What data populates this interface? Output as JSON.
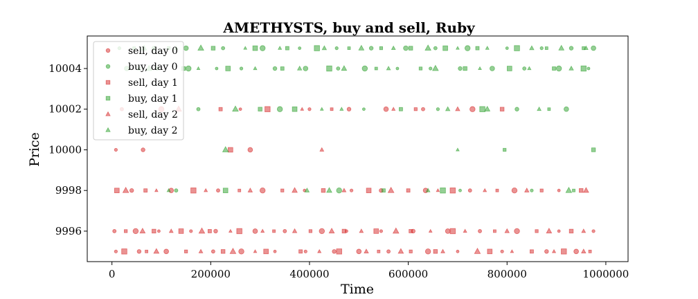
{
  "chart_data": {
    "type": "scatter",
    "title": "AMETHYSTS, buy and sell, Ruby",
    "xlabel": "Time",
    "ylabel": "Price",
    "xlim": [
      -50000,
      1045000
    ],
    "ylim": [
      9994.5,
      10005.6
    ],
    "xticks": [
      0,
      200000,
      400000,
      600000,
      800000,
      1000000
    ],
    "xtick_labels": [
      "0",
      "200000",
      "400000",
      "600000",
      "800000",
      "1000000"
    ],
    "yticks": [
      9996,
      9998,
      10000,
      10002,
      10004
    ],
    "ytick_labels": [
      "9996",
      "9998",
      "10000",
      "10002",
      "10004"
    ],
    "grid": false,
    "legend_position": "top-left",
    "colors": {
      "sell": "#d62728",
      "buy": "#2ca02c"
    },
    "marker_alpha": 0.5,
    "series": [
      {
        "name": "sell, day 0",
        "side": "sell",
        "marker": "circle",
        "points": [
          [
            8000,
            9995
          ],
          [
            55000,
            9995
          ],
          [
            110000,
            9995
          ],
          [
            205000,
            9995
          ],
          [
            262000,
            9995
          ],
          [
            330000,
            9995
          ],
          [
            392000,
            9995
          ],
          [
            450000,
            9995
          ],
          [
            500000,
            9995
          ],
          [
            560000,
            9995
          ],
          [
            640000,
            9995
          ],
          [
            700000,
            9995
          ],
          [
            790000,
            9995
          ],
          [
            880000,
            9995
          ],
          [
            940000,
            9995
          ],
          [
            5000,
            9996
          ],
          [
            48000,
            9996
          ],
          [
            95000,
            9996
          ],
          [
            160000,
            9996
          ],
          [
            210000,
            9996
          ],
          [
            290000,
            9996
          ],
          [
            350000,
            9996
          ],
          [
            425000,
            9996
          ],
          [
            475000,
            9996
          ],
          [
            545000,
            9996
          ],
          [
            610000,
            9996
          ],
          [
            680000,
            9996
          ],
          [
            745000,
            9996
          ],
          [
            820000,
            9996
          ],
          [
            905000,
            9996
          ],
          [
            975000,
            9996
          ],
          [
            40000,
            9998
          ],
          [
            120000,
            9998
          ],
          [
            215000,
            9998
          ],
          [
            305000,
            9998
          ],
          [
            390000,
            9998
          ],
          [
            485000,
            9998
          ],
          [
            545000,
            9998
          ],
          [
            635000,
            9998
          ],
          [
            725000,
            9998
          ],
          [
            815000,
            9998
          ],
          [
            905000,
            9998
          ],
          [
            8000,
            10000
          ],
          [
            63000,
            10000
          ],
          [
            280000,
            10000
          ],
          [
            20000,
            10002
          ],
          [
            100000,
            10002
          ],
          [
            260000,
            10002
          ],
          [
            400000,
            10002
          ],
          [
            480000,
            10002
          ],
          [
            555000,
            10002
          ],
          [
            630000,
            10002
          ],
          [
            730000,
            10002
          ]
        ]
      },
      {
        "name": "buy, day 0",
        "side": "buy",
        "marker": "circle",
        "points": [
          [
            30000,
            10004
          ],
          [
            92000,
            10004
          ],
          [
            155000,
            10004
          ],
          [
            212000,
            10004
          ],
          [
            262000,
            10004
          ],
          [
            330000,
            10004
          ],
          [
            392000,
            10004
          ],
          [
            458000,
            10004
          ],
          [
            512000,
            10004
          ],
          [
            578000,
            10004
          ],
          [
            645000,
            10004
          ],
          [
            705000,
            10004
          ],
          [
            770000,
            10004
          ],
          [
            835000,
            10004
          ],
          [
            905000,
            10004
          ],
          [
            965000,
            10004
          ],
          [
            15000,
            10005
          ],
          [
            85000,
            10005
          ],
          [
            150000,
            10005
          ],
          [
            225000,
            10005
          ],
          [
            305000,
            10005
          ],
          [
            380000,
            10005
          ],
          [
            455000,
            10005
          ],
          [
            525000,
            10005
          ],
          [
            595000,
            10005
          ],
          [
            655000,
            10005
          ],
          [
            720000,
            10005
          ],
          [
            800000,
            10005
          ],
          [
            870000,
            10005
          ],
          [
            930000,
            10005
          ],
          [
            975000,
            10005
          ],
          [
            175000,
            10002
          ],
          [
            340000,
            10002
          ],
          [
            510000,
            10002
          ],
          [
            660000,
            10002
          ],
          [
            820000,
            10002
          ],
          [
            920000,
            10002
          ],
          [
            130000,
            9998
          ],
          [
            460000,
            9998
          ],
          [
            705000,
            9998
          ],
          [
            850000,
            9998
          ]
        ]
      },
      {
        "name": "sell, day 1",
        "side": "sell",
        "marker": "square",
        "points": [
          [
            25000,
            9995
          ],
          [
            70000,
            9995
          ],
          [
            150000,
            9995
          ],
          [
            225000,
            9995
          ],
          [
            312000,
            9995
          ],
          [
            382000,
            9995
          ],
          [
            460000,
            9995
          ],
          [
            540000,
            9995
          ],
          [
            605000,
            9995
          ],
          [
            655000,
            9995
          ],
          [
            765000,
            9995
          ],
          [
            850000,
            9995
          ],
          [
            915000,
            9995
          ],
          [
            968000,
            9995
          ],
          [
            28000,
            9996
          ],
          [
            85000,
            9996
          ],
          [
            140000,
            9996
          ],
          [
            198000,
            9996
          ],
          [
            258000,
            9996
          ],
          [
            328000,
            9996
          ],
          [
            402000,
            9996
          ],
          [
            470000,
            9996
          ],
          [
            535000,
            9996
          ],
          [
            605000,
            9996
          ],
          [
            690000,
            9996
          ],
          [
            775000,
            9996
          ],
          [
            860000,
            9996
          ],
          [
            930000,
            9996
          ],
          [
            10000,
            9998
          ],
          [
            68000,
            9998
          ],
          [
            165000,
            9998
          ],
          [
            258000,
            9998
          ],
          [
            345000,
            9998
          ],
          [
            428000,
            9998
          ],
          [
            520000,
            9998
          ],
          [
            600000,
            9998
          ],
          [
            690000,
            9998
          ],
          [
            780000,
            9998
          ],
          [
            870000,
            9998
          ],
          [
            950000,
            9998
          ],
          [
            240000,
            10000
          ],
          [
            220000,
            10002
          ],
          [
            315000,
            10002
          ],
          [
            445000,
            10002
          ],
          [
            615000,
            10002
          ],
          [
            790000,
            10002
          ]
        ]
      },
      {
        "name": "buy, day 1",
        "side": "buy",
        "marker": "square",
        "points": [
          [
            55000,
            10004
          ],
          [
            145000,
            10004
          ],
          [
            235000,
            10004
          ],
          [
            345000,
            10004
          ],
          [
            440000,
            10004
          ],
          [
            535000,
            10004
          ],
          [
            625000,
            10004
          ],
          [
            715000,
            10004
          ],
          [
            805000,
            10004
          ],
          [
            895000,
            10004
          ],
          [
            955000,
            10004
          ],
          [
            45000,
            10005
          ],
          [
            115000,
            10005
          ],
          [
            205000,
            10005
          ],
          [
            290000,
            10005
          ],
          [
            355000,
            10005
          ],
          [
            415000,
            10005
          ],
          [
            480000,
            10005
          ],
          [
            545000,
            10005
          ],
          [
            605000,
            10005
          ],
          [
            675000,
            10005
          ],
          [
            740000,
            10005
          ],
          [
            820000,
            10005
          ],
          [
            880000,
            10005
          ],
          [
            955000,
            10005
          ],
          [
            300000,
            10002
          ],
          [
            370000,
            10002
          ],
          [
            585000,
            10002
          ],
          [
            750000,
            10002
          ],
          [
            885000,
            10002
          ],
          [
            795000,
            10000
          ],
          [
            975000,
            10000
          ],
          [
            230000,
            9998
          ],
          [
            550000,
            9998
          ],
          [
            670000,
            9998
          ],
          [
            935000,
            9998
          ]
        ]
      },
      {
        "name": "sell, day 2",
        "side": "sell",
        "marker": "triangle",
        "points": [
          [
            90000,
            9995
          ],
          [
            180000,
            9995
          ],
          [
            245000,
            9995
          ],
          [
            290000,
            9995
          ],
          [
            420000,
            9995
          ],
          [
            515000,
            9995
          ],
          [
            585000,
            9995
          ],
          [
            670000,
            9995
          ],
          [
            740000,
            9995
          ],
          [
            810000,
            9995
          ],
          [
            895000,
            9995
          ],
          [
            955000,
            9995
          ],
          [
            62000,
            9996
          ],
          [
            120000,
            9996
          ],
          [
            182000,
            9996
          ],
          [
            240000,
            9996
          ],
          [
            305000,
            9996
          ],
          [
            370000,
            9996
          ],
          [
            445000,
            9996
          ],
          [
            505000,
            9996
          ],
          [
            575000,
            9996
          ],
          [
            645000,
            9996
          ],
          [
            715000,
            9996
          ],
          [
            800000,
            9996
          ],
          [
            885000,
            9996
          ],
          [
            955000,
            9996
          ],
          [
            28000,
            9998
          ],
          [
            90000,
            9998
          ],
          [
            190000,
            9998
          ],
          [
            280000,
            9998
          ],
          [
            370000,
            9998
          ],
          [
            470000,
            9998
          ],
          [
            565000,
            9998
          ],
          [
            660000,
            9998
          ],
          [
            755000,
            9998
          ],
          [
            840000,
            9998
          ],
          [
            960000,
            9998
          ],
          [
            425000,
            10000
          ],
          [
            135000,
            10002
          ],
          [
            385000,
            10002
          ],
          [
            570000,
            10002
          ],
          [
            700000,
            10002
          ]
        ]
      },
      {
        "name": "buy, day 2",
        "side": "buy",
        "marker": "triangle",
        "points": [
          [
            75000,
            10004
          ],
          [
            175000,
            10004
          ],
          [
            290000,
            10004
          ],
          [
            380000,
            10004
          ],
          [
            470000,
            10004
          ],
          [
            560000,
            10004
          ],
          [
            655000,
            10004
          ],
          [
            745000,
            10004
          ],
          [
            845000,
            10004
          ],
          [
            930000,
            10004
          ],
          [
            65000,
            10005
          ],
          [
            130000,
            10005
          ],
          [
            180000,
            10005
          ],
          [
            270000,
            10005
          ],
          [
            340000,
            10005
          ],
          [
            430000,
            10005
          ],
          [
            505000,
            10005
          ],
          [
            570000,
            10005
          ],
          [
            640000,
            10005
          ],
          [
            700000,
            10005
          ],
          [
            760000,
            10005
          ],
          [
            850000,
            10005
          ],
          [
            910000,
            10005
          ],
          [
            960000,
            10005
          ],
          [
            250000,
            10002
          ],
          [
            425000,
            10002
          ],
          [
            465000,
            10002
          ],
          [
            680000,
            10002
          ],
          [
            760000,
            10002
          ],
          [
            865000,
            10002
          ],
          [
            230000,
            10000
          ],
          [
            700000,
            10000
          ],
          [
            115000,
            9998
          ],
          [
            395000,
            9998
          ],
          [
            440000,
            9998
          ],
          [
            640000,
            9998
          ],
          [
            925000,
            9998
          ]
        ]
      }
    ]
  }
}
